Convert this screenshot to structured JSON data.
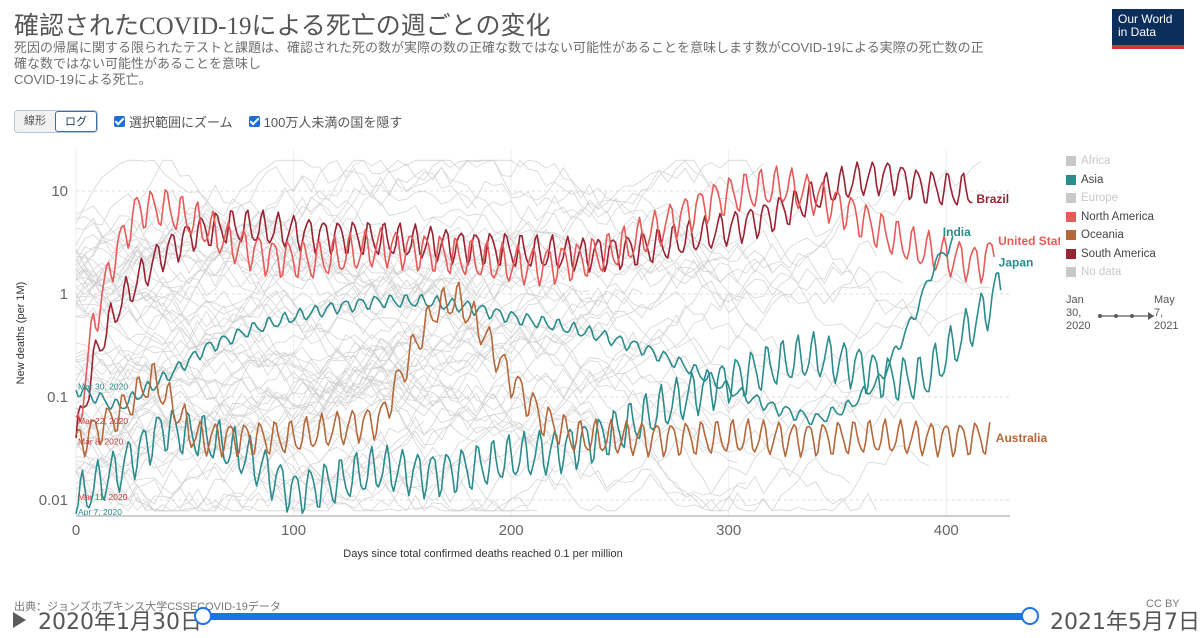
{
  "header": {
    "title": "確認されたCOVID-19による死亡の週ごとの変化",
    "subtitle_lines": [
      "死因の帰属に関する限られたテストと課題は、確認された死の数が実際の数の正確な数ではない可能性があることを意味します数がCOVID-19による実際の死亡数の正",
      "確な数ではない可能性があることを意味し",
      "COVID-19による死亡。"
    ],
    "logo_lines": [
      "Our World",
      "in Data"
    ]
  },
  "controls": {
    "scale_options": [
      "線形",
      "ログ"
    ],
    "selected_scale": "ログ",
    "zoom_label": "選択範囲にズーム",
    "hide_small_label": "100万人未満の国を隠す"
  },
  "legend": [
    {
      "label": "Africa",
      "color": "#c8c8c8",
      "active": false
    },
    {
      "label": "Asia",
      "color": "#2a8c8c",
      "active": true
    },
    {
      "label": "Europe",
      "color": "#c8c8c8",
      "active": false
    },
    {
      "label": "North America",
      "color": "#e85a57",
      "active": true
    },
    {
      "label": "Oceania",
      "color": "#b5683a",
      "active": true
    },
    {
      "label": "South America",
      "color": "#9a2232",
      "active": true
    },
    {
      "label": "No data",
      "color": "#c8c8c8",
      "active": false
    }
  ],
  "mini_timeline": {
    "start_lines": [
      "Jan",
      "30,",
      "2020"
    ],
    "end_lines": [
      "May",
      "7,",
      "2021"
    ]
  },
  "footer": {
    "source": "出典：ジョンズホプキンス大学CSSECOVID-19データ",
    "license": "CC BY"
  },
  "timeline": {
    "start_label": "2020年1月30日",
    "end_label": "2021年5月7日"
  },
  "chart_data": {
    "type": "line",
    "xlabel": "Days since total confirmed deaths reached 0.1 per million",
    "ylabel": "New deaths (per 1M)",
    "yscale": "log",
    "xlim": [
      0,
      425
    ],
    "ylim": [
      0.007,
      25
    ],
    "x_ticks": [
      0,
      100,
      200,
      300,
      400
    ],
    "y_ticks": [
      {
        "value": 0.01,
        "label": "0.01"
      },
      {
        "value": 0.1,
        "label": "0.1"
      },
      {
        "value": 1,
        "label": "1"
      },
      {
        "value": 10,
        "label": "10"
      }
    ],
    "start_labels": [
      {
        "text": "Mar 30, 2020",
        "y": 0.13,
        "color": "#2a8c8c"
      },
      {
        "text": "Mar 22, 2020",
        "y": 0.06,
        "color": "#c43b3b"
      },
      {
        "text": "Mar 8, 2020",
        "y": 0.038,
        "color": "#c43b3b"
      },
      {
        "text": "Mar 11, 2020",
        "y": 0.011,
        "color": "#c43b3b"
      },
      {
        "text": "Apr 7, 2020",
        "y": 0.0078,
        "color": "#2a8c8c"
      }
    ],
    "series": [
      {
        "name": "Brazil",
        "color": "#9a2232",
        "weekly": 2.0,
        "points": [
          [
            0,
            0.04
          ],
          [
            10,
            0.3
          ],
          [
            20,
            0.8
          ],
          [
            30,
            1.5
          ],
          [
            40,
            2.5
          ],
          [
            55,
            4
          ],
          [
            70,
            4.5
          ],
          [
            90,
            4.2
          ],
          [
            110,
            3.8
          ],
          [
            130,
            3.5
          ],
          [
            150,
            3.2
          ],
          [
            170,
            3
          ],
          [
            190,
            2.8
          ],
          [
            210,
            2.5
          ],
          [
            230,
            2.4
          ],
          [
            250,
            2.6
          ],
          [
            270,
            3
          ],
          [
            290,
            3.8
          ],
          [
            310,
            5
          ],
          [
            330,
            7
          ],
          [
            345,
            10
          ],
          [
            360,
            13
          ],
          [
            375,
            14
          ],
          [
            390,
            11
          ],
          [
            405,
            10
          ],
          [
            412,
            10
          ]
        ]
      },
      {
        "name": "United States",
        "color": "#e85a57",
        "weekly": 2.2,
        "points": [
          [
            0,
            0.04
          ],
          [
            8,
            0.5
          ],
          [
            18,
            2.5
          ],
          [
            28,
            6.5
          ],
          [
            40,
            7
          ],
          [
            55,
            5
          ],
          [
            70,
            3.2
          ],
          [
            90,
            2.3
          ],
          [
            110,
            2.1
          ],
          [
            125,
            2.4
          ],
          [
            140,
            2.9
          ],
          [
            155,
            2.7
          ],
          [
            170,
            2.4
          ],
          [
            190,
            2
          ],
          [
            210,
            1.9
          ],
          [
            230,
            2.1
          ],
          [
            250,
            2.7
          ],
          [
            265,
            4
          ],
          [
            280,
            6
          ],
          [
            295,
            8.5
          ],
          [
            310,
            10
          ],
          [
            325,
            11
          ],
          [
            340,
            9
          ],
          [
            355,
            6.5
          ],
          [
            370,
            4
          ],
          [
            385,
            2.8
          ],
          [
            400,
            2.3
          ],
          [
            415,
            2
          ],
          [
            422,
            2.5
          ]
        ]
      },
      {
        "name": "India",
        "color": "#2a8c8c",
        "weekly": 1.3,
        "points": [
          [
            0,
            0.12
          ],
          [
            20,
            0.08
          ],
          [
            40,
            0.15
          ],
          [
            60,
            0.3
          ],
          [
            80,
            0.45
          ],
          [
            100,
            0.6
          ],
          [
            120,
            0.75
          ],
          [
            140,
            0.85
          ],
          [
            160,
            0.85
          ],
          [
            180,
            0.75
          ],
          [
            200,
            0.6
          ],
          [
            220,
            0.5
          ],
          [
            240,
            0.4
          ],
          [
            260,
            0.3
          ],
          [
            280,
            0.2
          ],
          [
            300,
            0.12
          ],
          [
            320,
            0.08
          ],
          [
            340,
            0.06
          ],
          [
            355,
            0.08
          ],
          [
            370,
            0.15
          ],
          [
            385,
            0.6
          ],
          [
            395,
            2
          ],
          [
            403,
            3.2
          ]
        ]
      },
      {
        "name": "Japan",
        "color": "#2a8c8c",
        "weekly": 2.5,
        "points": [
          [
            0,
            0.01
          ],
          [
            20,
            0.02
          ],
          [
            40,
            0.05
          ],
          [
            60,
            0.04
          ],
          [
            80,
            0.025
          ],
          [
            100,
            0.012
          ],
          [
            120,
            0.015
          ],
          [
            140,
            0.02
          ],
          [
            160,
            0.018
          ],
          [
            180,
            0.02
          ],
          [
            200,
            0.025
          ],
          [
            220,
            0.03
          ],
          [
            240,
            0.04
          ],
          [
            260,
            0.06
          ],
          [
            280,
            0.1
          ],
          [
            300,
            0.15
          ],
          [
            320,
            0.2
          ],
          [
            340,
            0.25
          ],
          [
            360,
            0.2
          ],
          [
            375,
            0.15
          ],
          [
            390,
            0.15
          ],
          [
            400,
            0.25
          ],
          [
            410,
            0.45
          ],
          [
            420,
            0.8
          ],
          [
            425,
            1.3
          ]
        ]
      },
      {
        "name": "Australia",
        "color": "#b5683a",
        "weekly": 2.0,
        "points": [
          [
            0,
            0.035
          ],
          [
            20,
            0.07
          ],
          [
            35,
            0.15
          ],
          [
            45,
            0.08
          ],
          [
            55,
            0.04
          ],
          [
            100,
            0.04
          ],
          [
            140,
            0.06
          ],
          [
            155,
            0.3
          ],
          [
            165,
            0.7
          ],
          [
            175,
            0.9
          ],
          [
            185,
            0.5
          ],
          [
            200,
            0.15
          ],
          [
            215,
            0.06
          ],
          [
            230,
            0.04
          ],
          [
            260,
            0.04
          ],
          [
            420,
            0.04
          ]
        ]
      }
    ]
  }
}
